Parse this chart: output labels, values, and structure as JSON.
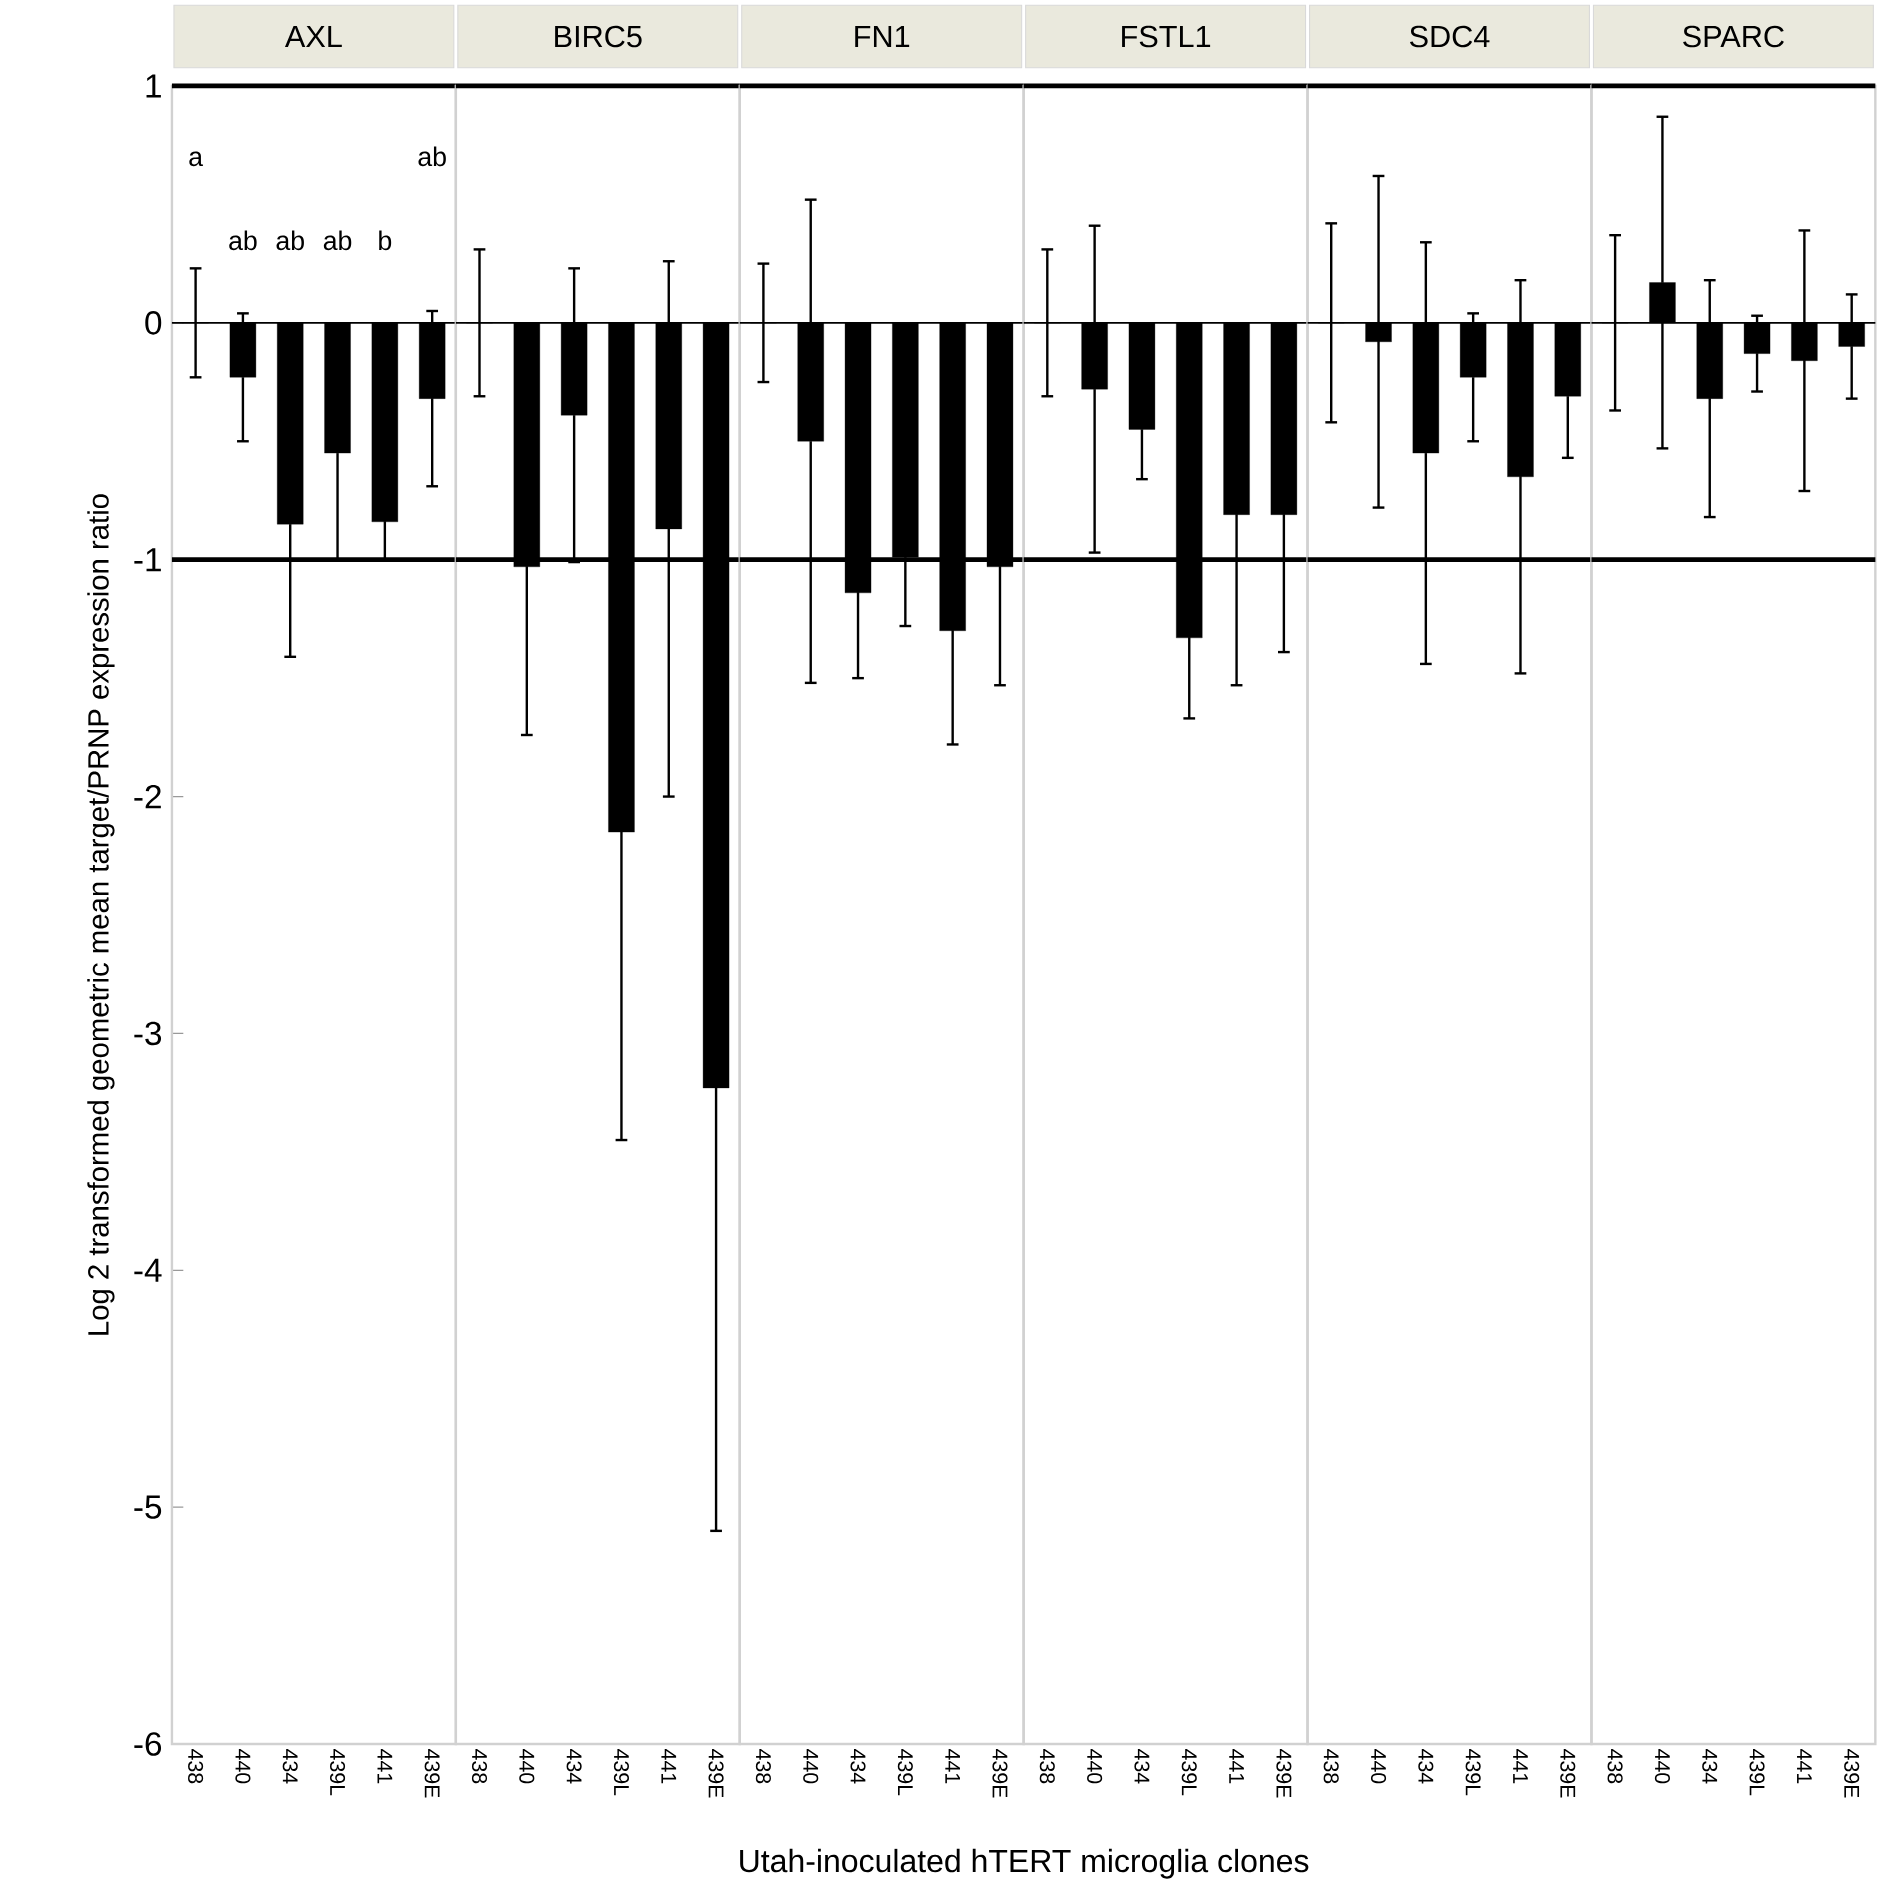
{
  "chart_data": [
    {
      "type": "bar",
      "title": "AXL",
      "ylabel": "Log 2 transformed geometric mean target/PRNP expression ratio",
      "categories": [
        "438",
        "440",
        "434",
        "439L",
        "441",
        "439E"
      ],
      "values": [
        0,
        -0.23,
        -0.85,
        -0.55,
        -0.84,
        -0.32
      ],
      "errors": [
        0.23,
        0.27,
        0.56,
        0.45,
        0.16,
        0.37
      ],
      "color": "#000000",
      "ylim": [
        -6,
        1
      ],
      "yticks": [
        -6,
        -5,
        -4,
        -3,
        -2,
        -1,
        0,
        1
      ],
      "ref_lines": [
        {
          "axis": "y",
          "value": -1
        },
        {
          "axis": "y",
          "value": 1
        }
      ],
      "annotations": [
        "a",
        "ab",
        "ab",
        "ab",
        "b",
        "ab"
      ]
    },
    {
      "type": "bar",
      "title": "BIRC5",
      "categories": [
        "438",
        "440",
        "434",
        "439L",
        "441",
        "439E"
      ],
      "values": [
        0,
        -1.03,
        -0.39,
        -2.15,
        -0.87,
        -3.23
      ],
      "errors": [
        0.31,
        0.71,
        0.62,
        1.3,
        1.13,
        1.87
      ],
      "color": "#000000",
      "ylim": [
        -6,
        1
      ],
      "tick_labels": "x",
      "ref_lines": [
        {
          "axis": "y",
          "value": -1
        },
        {
          "axis": "y",
          "value": 1
        }
      ]
    },
    {
      "type": "bar",
      "title": "FN1",
      "xlabel": "Utah-inoculated hTERT microglia clones",
      "categories": [
        "438",
        "440",
        "434",
        "439L",
        "441",
        "439E"
      ],
      "values": [
        0,
        -0.5,
        -1.14,
        -0.99,
        -1.3,
        -1.03
      ],
      "errors": [
        0.25,
        1.02,
        0.36,
        0.29,
        0.48,
        0.5
      ],
      "color": "#000000",
      "ylim": [
        -6,
        1
      ],
      "tick_labels": "x",
      "ref_lines": [
        {
          "axis": "y",
          "value": -1
        },
        {
          "axis": "y",
          "value": 1
        }
      ]
    },
    {
      "type": "bar",
      "title": "FSTL1",
      "categories": [
        "438",
        "440",
        "434",
        "439L",
        "441",
        "439E"
      ],
      "values": [
        0,
        -0.28,
        -0.45,
        -1.33,
        -0.81,
        -0.81
      ],
      "errors": [
        0.31,
        0.69,
        0.21,
        0.34,
        0.72,
        0.58
      ],
      "color": "#000000",
      "ylim": [
        -6,
        1
      ],
      "tick_labels": "x",
      "ref_lines": [
        {
          "axis": "y",
          "value": -1
        },
        {
          "axis": "y",
          "value": 1
        }
      ]
    },
    {
      "type": "bar",
      "title": "SDC4",
      "categories": [
        "438",
        "440",
        "434",
        "439L",
        "441",
        "439E"
      ],
      "values": [
        0,
        -0.08,
        -0.55,
        -0.23,
        -0.65,
        -0.31
      ],
      "errors": [
        0.42,
        0.7,
        0.89,
        0.27,
        0.83,
        0.26
      ],
      "color": "#000000",
      "ylim": [
        -6,
        1
      ],
      "tick_labels": "x",
      "ref_lines": [
        {
          "axis": "y",
          "value": -1
        },
        {
          "axis": "y",
          "value": 1
        }
      ]
    },
    {
      "type": "bar",
      "title": "SPARC",
      "categories": [
        "438",
        "440",
        "434",
        "439L",
        "441",
        "439E"
      ],
      "values": [
        0,
        0.17,
        -0.32,
        -0.13,
        -0.16,
        -0.1
      ],
      "errors": [
        0.37,
        0.7,
        0.5,
        0.16,
        0.55,
        0.22
      ],
      "color": "#000000",
      "ylim": [
        -6,
        1
      ],
      "tick_labels": "x",
      "ref_lines": [
        {
          "axis": "y",
          "value": -1
        },
        {
          "axis": "y",
          "value": 1
        }
      ]
    }
  ]
}
